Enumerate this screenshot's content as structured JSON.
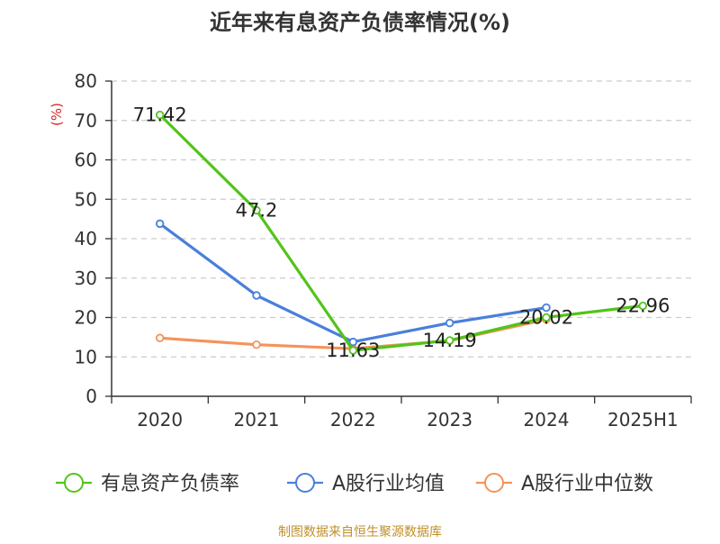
{
  "chart_data": {
    "type": "line",
    "title": "近年来有息资产负债率情况(%)",
    "ylabel": "(%)",
    "xlabel": "",
    "categories": [
      "2020",
      "2021",
      "2022",
      "2023",
      "2024",
      "2025H1"
    ],
    "ylim": [
      0,
      80
    ],
    "yticks": [
      0,
      10,
      20,
      30,
      40,
      50,
      60,
      70,
      80
    ],
    "grid": true,
    "legend_position": "bottom",
    "series": [
      {
        "name": "有息资产负债率",
        "color": "#52c41a",
        "values": [
          71.42,
          47.2,
          11.63,
          14.19,
          20.02,
          22.96
        ],
        "data_labels": [
          "71.42",
          "47.2",
          "11.63",
          "14.19",
          "20.02",
          "22.96"
        ]
      },
      {
        "name": "A股行业均值",
        "color": "#4a7fdb",
        "values": [
          43.8,
          25.6,
          13.8,
          18.6,
          22.5,
          null
        ]
      },
      {
        "name": "A股行业中位数",
        "color": "#f4935b",
        "values": [
          14.8,
          13.1,
          12.1,
          14.1,
          19.5,
          null
        ]
      }
    ],
    "source": "制图数据来自恒生聚源数据库"
  },
  "colors": {
    "axis": "#333333",
    "grid": "#cccccc",
    "ylabel": "#d62728",
    "source": "#c0902a"
  }
}
